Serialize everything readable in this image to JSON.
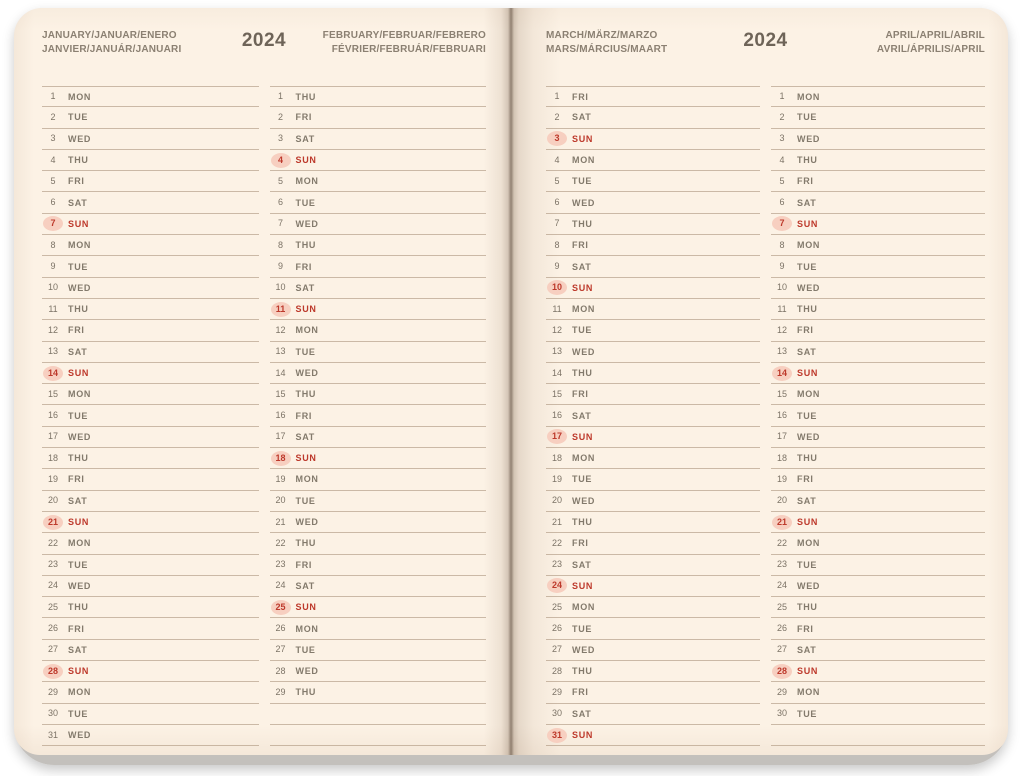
{
  "year": "2024",
  "row_slots_per_column": 31,
  "sunday_label": "SUN",
  "colors": {
    "paper": "#fcf2e5",
    "rule_line": "#a9906f",
    "weekday_text": "#7c7366",
    "title_text": "#8b8072",
    "year_text": "#6e6458",
    "sunday_text": "#bd392b",
    "sunday_highlight": "#f7cfc0",
    "page_stack_edge": "#c9c6c2"
  },
  "pages": [
    {
      "side": "left",
      "year_label": "2024",
      "months": [
        {
          "id": "january",
          "title_line1": "JANUARY/JANUAR/ENERO",
          "title_line2": "JANVIER/JANUÁR/JANUARI",
          "days": [
            [
              1,
              "MON"
            ],
            [
              2,
              "TUE"
            ],
            [
              3,
              "WED"
            ],
            [
              4,
              "THU"
            ],
            [
              5,
              "FRI"
            ],
            [
              6,
              "SAT"
            ],
            [
              7,
              "SUN"
            ],
            [
              8,
              "MON"
            ],
            [
              9,
              "TUE"
            ],
            [
              10,
              "WED"
            ],
            [
              11,
              "THU"
            ],
            [
              12,
              "FRI"
            ],
            [
              13,
              "SAT"
            ],
            [
              14,
              "SUN"
            ],
            [
              15,
              "MON"
            ],
            [
              16,
              "TUE"
            ],
            [
              17,
              "WED"
            ],
            [
              18,
              "THU"
            ],
            [
              19,
              "FRI"
            ],
            [
              20,
              "SAT"
            ],
            [
              21,
              "SUN"
            ],
            [
              22,
              "MON"
            ],
            [
              23,
              "TUE"
            ],
            [
              24,
              "WED"
            ],
            [
              25,
              "THU"
            ],
            [
              26,
              "FRI"
            ],
            [
              27,
              "SAT"
            ],
            [
              28,
              "SUN"
            ],
            [
              29,
              "MON"
            ],
            [
              30,
              "TUE"
            ],
            [
              31,
              "WED"
            ]
          ]
        },
        {
          "id": "february",
          "title_line1": "FEBRUARY/FEBRUAR/FEBRERO",
          "title_line2": "FÉVRIER/FEBRUÁR/FEBRUARI",
          "days": [
            [
              1,
              "THU"
            ],
            [
              2,
              "FRI"
            ],
            [
              3,
              "SAT"
            ],
            [
              4,
              "SUN"
            ],
            [
              5,
              "MON"
            ],
            [
              6,
              "TUE"
            ],
            [
              7,
              "WED"
            ],
            [
              8,
              "THU"
            ],
            [
              9,
              "FRI"
            ],
            [
              10,
              "SAT"
            ],
            [
              11,
              "SUN"
            ],
            [
              12,
              "MON"
            ],
            [
              13,
              "TUE"
            ],
            [
              14,
              "WED"
            ],
            [
              15,
              "THU"
            ],
            [
              16,
              "FRI"
            ],
            [
              17,
              "SAT"
            ],
            [
              18,
              "SUN"
            ],
            [
              19,
              "MON"
            ],
            [
              20,
              "TUE"
            ],
            [
              21,
              "WED"
            ],
            [
              22,
              "THU"
            ],
            [
              23,
              "FRI"
            ],
            [
              24,
              "SAT"
            ],
            [
              25,
              "SUN"
            ],
            [
              26,
              "MON"
            ],
            [
              27,
              "TUE"
            ],
            [
              28,
              "WED"
            ],
            [
              29,
              "THU"
            ]
          ]
        }
      ]
    },
    {
      "side": "right",
      "year_label": "2024",
      "months": [
        {
          "id": "march",
          "title_line1": "MARCH/MÄRZ/MARZO",
          "title_line2": "MARS/MÁRCIUS/MAART",
          "days": [
            [
              1,
              "FRI"
            ],
            [
              2,
              "SAT"
            ],
            [
              3,
              "SUN"
            ],
            [
              4,
              "MON"
            ],
            [
              5,
              "TUE"
            ],
            [
              6,
              "WED"
            ],
            [
              7,
              "THU"
            ],
            [
              8,
              "FRI"
            ],
            [
              9,
              "SAT"
            ],
            [
              10,
              "SUN"
            ],
            [
              11,
              "MON"
            ],
            [
              12,
              "TUE"
            ],
            [
              13,
              "WED"
            ],
            [
              14,
              "THU"
            ],
            [
              15,
              "FRI"
            ],
            [
              16,
              "SAT"
            ],
            [
              17,
              "SUN"
            ],
            [
              18,
              "MON"
            ],
            [
              19,
              "TUE"
            ],
            [
              20,
              "WED"
            ],
            [
              21,
              "THU"
            ],
            [
              22,
              "FRI"
            ],
            [
              23,
              "SAT"
            ],
            [
              24,
              "SUN"
            ],
            [
              25,
              "MON"
            ],
            [
              26,
              "TUE"
            ],
            [
              27,
              "WED"
            ],
            [
              28,
              "THU"
            ],
            [
              29,
              "FRI"
            ],
            [
              30,
              "SAT"
            ],
            [
              31,
              "SUN"
            ]
          ]
        },
        {
          "id": "april",
          "title_line1": "APRIL/APRIL/ABRIL",
          "title_line2": "AVRIL/ÁPRILIS/APRIL",
          "days": [
            [
              1,
              "MON"
            ],
            [
              2,
              "TUE"
            ],
            [
              3,
              "WED"
            ],
            [
              4,
              "THU"
            ],
            [
              5,
              "FRI"
            ],
            [
              6,
              "SAT"
            ],
            [
              7,
              "SUN"
            ],
            [
              8,
              "MON"
            ],
            [
              9,
              "TUE"
            ],
            [
              10,
              "WED"
            ],
            [
              11,
              "THU"
            ],
            [
              12,
              "FRI"
            ],
            [
              13,
              "SAT"
            ],
            [
              14,
              "SUN"
            ],
            [
              15,
              "MON"
            ],
            [
              16,
              "TUE"
            ],
            [
              17,
              "WED"
            ],
            [
              18,
              "THU"
            ],
            [
              19,
              "FRI"
            ],
            [
              20,
              "SAT"
            ],
            [
              21,
              "SUN"
            ],
            [
              22,
              "MON"
            ],
            [
              23,
              "TUE"
            ],
            [
              24,
              "WED"
            ],
            [
              25,
              "THU"
            ],
            [
              26,
              "FRI"
            ],
            [
              27,
              "SAT"
            ],
            [
              28,
              "SUN"
            ],
            [
              29,
              "MON"
            ],
            [
              30,
              "TUE"
            ]
          ]
        }
      ]
    }
  ]
}
